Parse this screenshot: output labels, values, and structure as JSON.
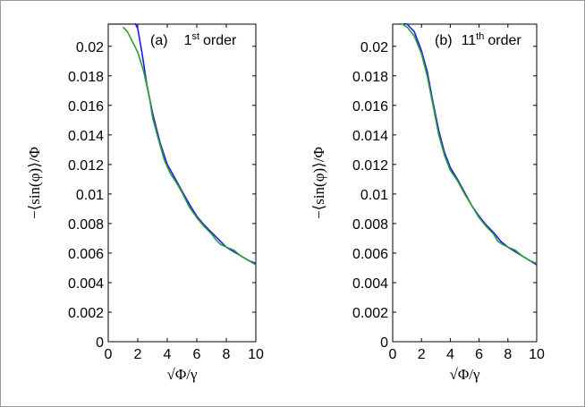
{
  "chart_data": [
    {
      "type": "line",
      "annotation": {
        "prefix": "(a)",
        "number": "1",
        "superscript": "st",
        "suffix": "order"
      },
      "xlabel": "√Φ/γ",
      "ylabel": "−⟨sin(φ)⟩/Φ",
      "xlim": [
        0,
        10
      ],
      "ylim": [
        0,
        0.0215
      ],
      "xticks": [
        "0",
        "2",
        "4",
        "6",
        "8",
        "10"
      ],
      "yticks": [
        "0",
        "0.002",
        "0.004",
        "0.006",
        "0.008",
        "0.01",
        "0.012",
        "0.014",
        "0.016",
        "0.018",
        "0.02"
      ],
      "grid": false,
      "series": [
        {
          "color": "#1a1aff",
          "x": [
            0,
            0.6,
            1.2,
            1.8,
            2.0,
            2.3,
            2.6,
            3.0,
            3.5,
            4.0,
            4.5,
            5.0,
            5.5,
            6.0,
            6.5,
            7.0,
            7.5,
            8.0,
            8.5,
            9.0,
            9.5,
            10.0
          ],
          "y": [
            0.0216,
            0.0216,
            0.0216,
            0.0216,
            0.0212,
            0.0195,
            0.0175,
            0.0155,
            0.0135,
            0.012,
            0.0111,
            0.0102,
            0.0093,
            0.0085,
            0.0079,
            0.0074,
            0.0069,
            0.0064,
            0.0061,
            0.0058,
            0.0055,
            0.0053
          ]
        },
        {
          "color": "#2a9d2a",
          "x": [
            1.0,
            1.3,
            1.6,
            2.0,
            2.4,
            2.8,
            3.0,
            3.4,
            3.8,
            4.2,
            4.6,
            5.0,
            5.5,
            6.0,
            6.5,
            7.0,
            7.3,
            7.6,
            8.0,
            8.5,
            9.0,
            9.5,
            10.0
          ],
          "y": [
            0.0213,
            0.021,
            0.0204,
            0.0196,
            0.0183,
            0.0165,
            0.0152,
            0.0137,
            0.0123,
            0.0114,
            0.0108,
            0.0101,
            0.0091,
            0.0084,
            0.0078,
            0.0073,
            0.0069,
            0.0066,
            0.0064,
            0.0062,
            0.0058,
            0.0055,
            0.0052
          ]
        }
      ]
    },
    {
      "type": "line",
      "annotation": {
        "prefix": "(b)",
        "number": "11",
        "superscript": "th",
        "suffix": "order"
      },
      "xlabel": "√Φ/γ",
      "ylabel": "−⟨sin(φ)⟩/Φ",
      "xlim": [
        0,
        10
      ],
      "ylim": [
        0,
        0.0215
      ],
      "xticks": [
        "0",
        "2",
        "4",
        "6",
        "8",
        "10"
      ],
      "yticks": [
        "0",
        "0.002",
        "0.004",
        "0.006",
        "0.008",
        "0.01",
        "0.012",
        "0.014",
        "0.016",
        "0.018",
        "0.02"
      ],
      "grid": false,
      "series": [
        {
          "color": "#1a1aff",
          "x": [
            0,
            0.5,
            1.0,
            1.5,
            2.0,
            2.4,
            2.8,
            3.2,
            3.6,
            4.0,
            4.5,
            5.0,
            5.5,
            6.0,
            6.5,
            7.0,
            7.5,
            8.0,
            8.5,
            9.0,
            9.5,
            10.0
          ],
          "y": [
            0.0217,
            0.0217,
            0.0215,
            0.021,
            0.0197,
            0.0183,
            0.0162,
            0.0143,
            0.0128,
            0.0118,
            0.011,
            0.0101,
            0.0092,
            0.0085,
            0.0079,
            0.0074,
            0.0068,
            0.0064,
            0.0061,
            0.0058,
            0.0055,
            0.0052
          ]
        },
        {
          "color": "#2a9d2a",
          "x": [
            0.5,
            1.0,
            1.5,
            2.0,
            2.4,
            2.8,
            3.2,
            3.6,
            4.0,
            4.5,
            5.0,
            5.5,
            6.0,
            6.5,
            7.0,
            7.3,
            7.6,
            8.0,
            8.5,
            9.0,
            9.5,
            10.0
          ],
          "y": [
            0.0216,
            0.0213,
            0.0207,
            0.0195,
            0.018,
            0.016,
            0.014,
            0.0126,
            0.0116,
            0.0109,
            0.01,
            0.0092,
            0.0084,
            0.0078,
            0.0073,
            0.0068,
            0.0066,
            0.0064,
            0.0062,
            0.0058,
            0.0055,
            0.0053
          ]
        }
      ]
    }
  ]
}
